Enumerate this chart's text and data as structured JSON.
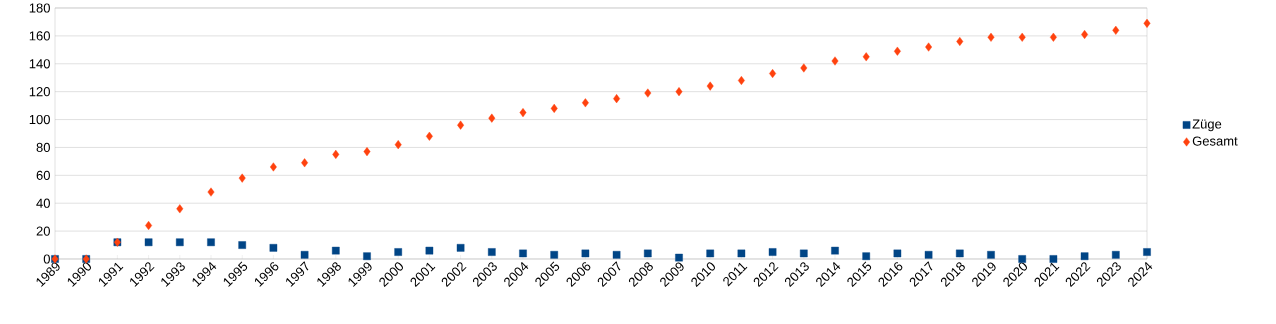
{
  "chart_data": {
    "type": "scatter",
    "categories": [
      "1989",
      "1990",
      "1991",
      "1992",
      "1993",
      "1994",
      "1995",
      "1996",
      "1997",
      "1998",
      "1999",
      "2000",
      "2001",
      "2002",
      "2003",
      "2004",
      "2005",
      "2006",
      "2007",
      "2008",
      "2009",
      "2010",
      "2011",
      "2012",
      "2013",
      "2014",
      "2015",
      "2016",
      "2017",
      "2018",
      "2019",
      "2020",
      "2021",
      "2022",
      "2023",
      "2024"
    ],
    "series": [
      {
        "name": "Züge",
        "color": "#004586",
        "marker": "square",
        "values": [
          0,
          0,
          12,
          12,
          12,
          12,
          10,
          8,
          3,
          6,
          2,
          5,
          6,
          8,
          5,
          4,
          3,
          4,
          3,
          4,
          1,
          4,
          4,
          5,
          4,
          6,
          2,
          4,
          3,
          4,
          3,
          0,
          0,
          2,
          3,
          5
        ]
      },
      {
        "name": "Gesamt",
        "color": "#ff420e",
        "marker": "diamond",
        "values": [
          0,
          0,
          12,
          24,
          36,
          48,
          58,
          66,
          69,
          75,
          77,
          82,
          88,
          96,
          101,
          105,
          108,
          112,
          115,
          119,
          120,
          124,
          128,
          133,
          137,
          142,
          145,
          149,
          152,
          156,
          159,
          159,
          159,
          161,
          164,
          169
        ]
      }
    ],
    "ylim": [
      0,
      180
    ],
    "yticks": [
      0,
      20,
      40,
      60,
      80,
      100,
      120,
      140,
      160,
      180
    ],
    "grid": "y",
    "legend": "right"
  }
}
